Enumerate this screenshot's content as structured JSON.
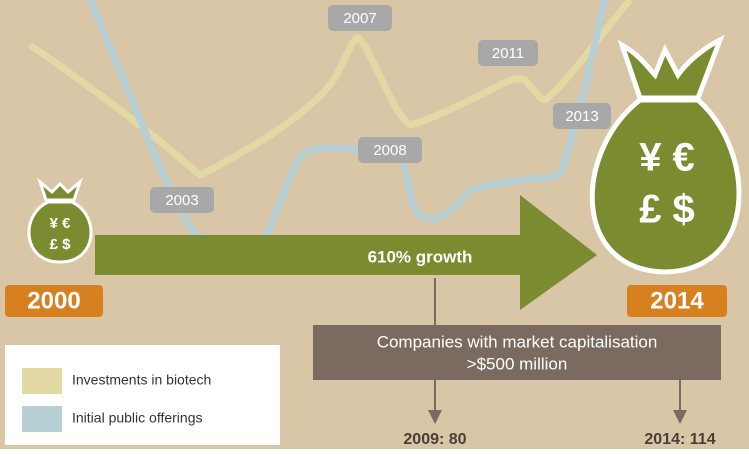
{
  "labels": {
    "y2007": "2007",
    "y2011": "2011",
    "y2013": "2013",
    "y2008": "2008",
    "y2003": "2003"
  },
  "start_year": "2000",
  "end_year": "2014",
  "growth": "610% growth",
  "small_bag": {
    "line1": "¥ €",
    "line2": "£ $"
  },
  "big_bag": {
    "line1": "¥ €",
    "line2": "£ $"
  },
  "companies_box": {
    "line1": "Companies with market capitalisation",
    "line2": ">$500 million"
  },
  "counts": [
    "2009: 80",
    "2014: 114"
  ],
  "legend": [
    "Investments in biotech",
    "Initial public offerings"
  ]
}
